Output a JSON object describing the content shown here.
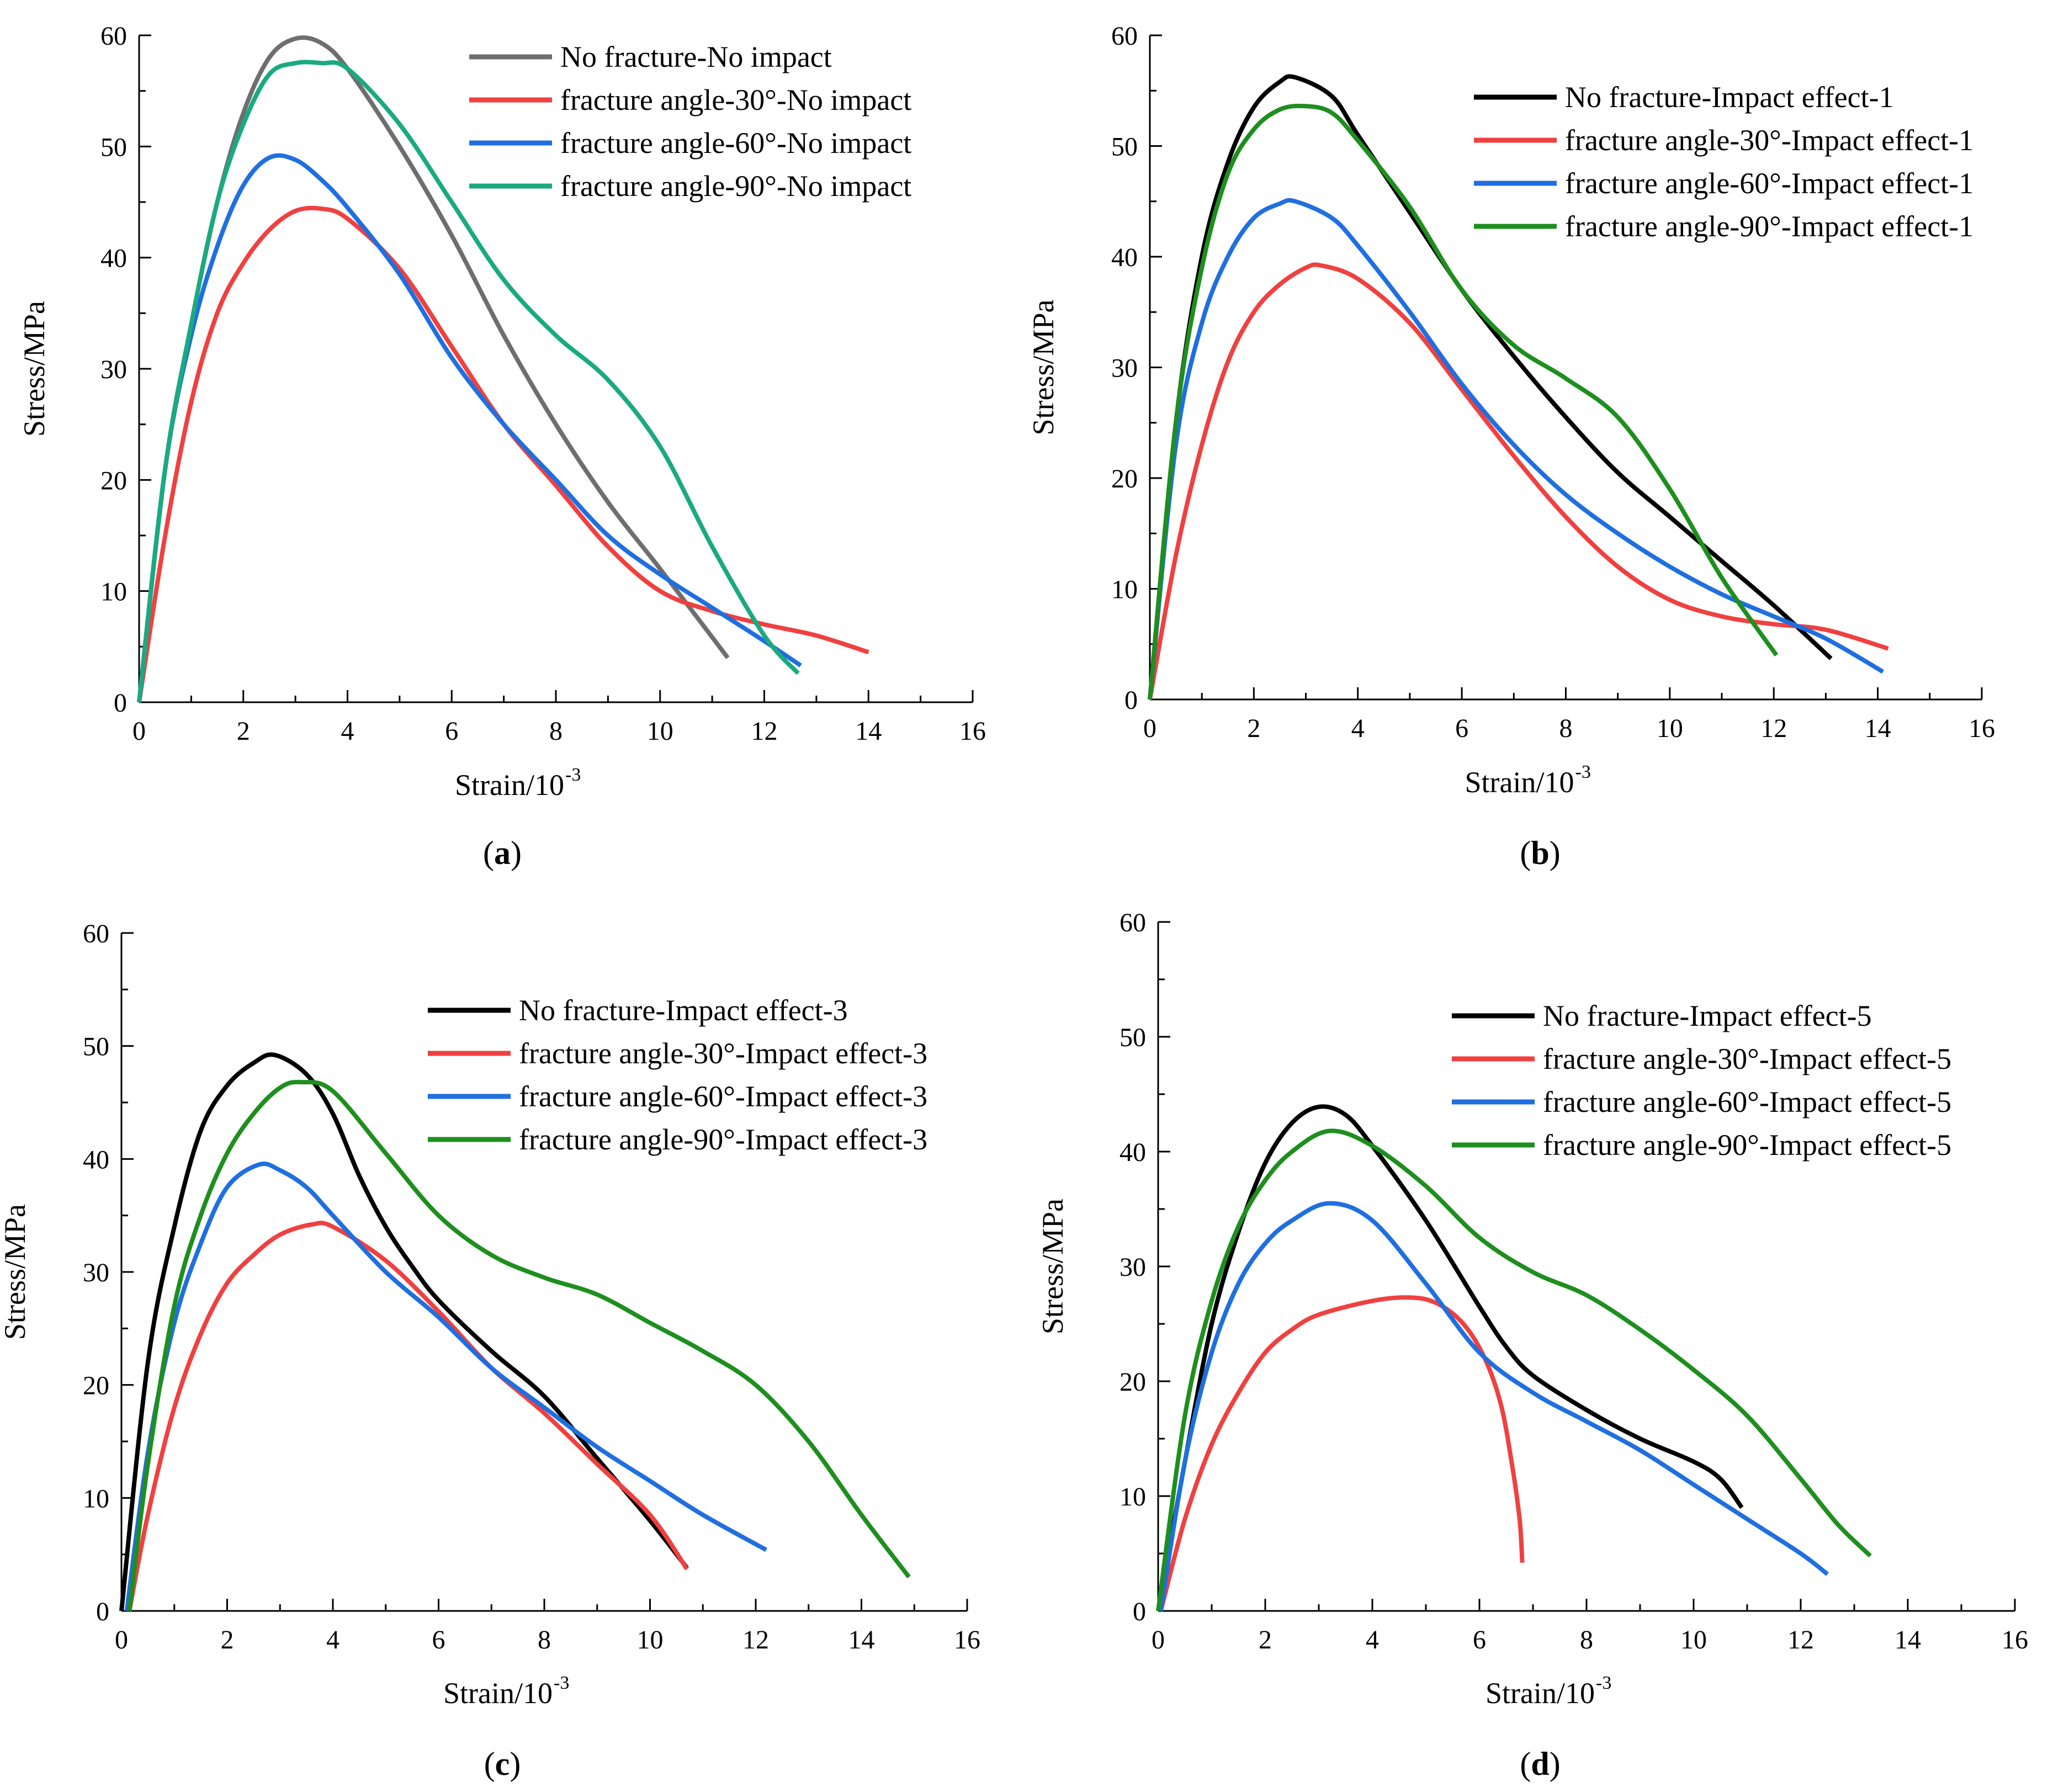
{
  "figure": {
    "panel_labels": [
      {
        "open": "(",
        "letter": "a",
        "close": ")"
      },
      {
        "open": "(",
        "letter": "b",
        "close": ")"
      },
      {
        "open": "(",
        "letter": "c",
        "close": ")"
      },
      {
        "open": "(",
        "letter": "d",
        "close": ")"
      }
    ]
  },
  "chart_data": [
    {
      "type": "line",
      "panel": "a",
      "xlabel": "Strain/10",
      "xlabel_superscript": "-3",
      "ylabel": "Stress/MPa",
      "xlim": [
        0,
        16
      ],
      "ylim": [
        0,
        60
      ],
      "xticks": [
        0,
        2,
        4,
        6,
        8,
        10,
        12,
        14,
        16
      ],
      "yticks": [
        0,
        10,
        20,
        30,
        40,
        50,
        60
      ],
      "legend_position": "top-right",
      "series": [
        {
          "name": "No fracture-No impact",
          "color": "#6e6e6e",
          "x": [
            0,
            0.5,
            1,
            1.5,
            2,
            2.5,
            3,
            3.5,
            4,
            5,
            6,
            7,
            8,
            9,
            10,
            11.3
          ],
          "y": [
            0,
            21,
            34,
            45,
            53,
            58,
            59.7,
            59.3,
            57,
            50,
            42,
            33,
            25,
            18,
            12,
            4
          ]
        },
        {
          "name": "fracture angle-30°-No impact",
          "color": "#f04040",
          "x": [
            0,
            0.5,
            1,
            1.5,
            2,
            2.5,
            3,
            3.5,
            4,
            5,
            6,
            7,
            8,
            9,
            10,
            11,
            12,
            13,
            14
          ],
          "y": [
            0,
            15,
            27,
            35,
            39.5,
            42.5,
            44.2,
            44.4,
            43.5,
            39,
            32,
            25,
            19.5,
            14,
            10,
            8.2,
            7,
            6,
            4.5
          ]
        },
        {
          "name": "fracture angle-60°-No impact",
          "color": "#1f6fe0",
          "x": [
            0,
            0.5,
            1,
            1.5,
            2,
            2.5,
            3,
            3.5,
            4,
            5,
            6,
            7,
            8,
            9,
            10,
            11,
            12,
            12.7
          ],
          "y": [
            0,
            21,
            33,
            41,
            46.5,
            49,
            48.8,
            47,
            44.5,
            38.5,
            31,
            25,
            20,
            15,
            11.5,
            8.5,
            5.5,
            3.3
          ]
        },
        {
          "name": "fracture angle-90°-No impact",
          "color": "#1aaa80",
          "x": [
            0,
            0.5,
            1,
            1.5,
            2,
            2.5,
            3,
            3.5,
            4,
            5,
            6,
            7,
            8,
            9,
            10,
            11,
            12,
            12.65
          ],
          "y": [
            0,
            21,
            34,
            45,
            52,
            56.5,
            57.5,
            57.5,
            57,
            52,
            45,
            38,
            33,
            29,
            23,
            14,
            6,
            2.6
          ]
        }
      ]
    },
    {
      "type": "line",
      "panel": "b",
      "xlabel": "Strain/10",
      "xlabel_superscript": "-3",
      "ylabel": "Stress/MPa",
      "xlim": [
        0,
        16
      ],
      "ylim": [
        0,
        60
      ],
      "xticks": [
        0,
        2,
        4,
        6,
        8,
        10,
        12,
        14,
        16
      ],
      "yticks": [
        0,
        10,
        20,
        30,
        40,
        50,
        60
      ],
      "legend_position": "top-right",
      "series": [
        {
          "name": "No fracture-Impact effect-1",
          "color": "#000000",
          "x": [
            0,
            0.5,
            1,
            1.5,
            2,
            2.5,
            2.8,
            3.5,
            4,
            5,
            6,
            7,
            8,
            9,
            10,
            11,
            12,
            13.1
          ],
          "y": [
            0,
            25,
            40,
            48.5,
            53.5,
            55.8,
            56.2,
            54.5,
            51,
            44,
            37,
            31,
            25.5,
            20.5,
            16.5,
            12.5,
            8.5,
            3.7
          ]
        },
        {
          "name": "fracture angle-30°-Impact effect-1",
          "color": "#f04040",
          "x": [
            0,
            0.5,
            1,
            1.5,
            2,
            2.5,
            3,
            3.3,
            4,
            5,
            6,
            7,
            8,
            9,
            10,
            11,
            12,
            13,
            14.2
          ],
          "y": [
            0,
            13,
            23,
            30.5,
            35,
            37.5,
            39,
            39.2,
            38,
            34,
            28,
            22,
            16.5,
            12,
            9,
            7.5,
            6.8,
            6.3,
            4.6
          ]
        },
        {
          "name": "fracture angle-60°-Impact effect-1",
          "color": "#1f6fe0",
          "x": [
            0,
            0.5,
            1,
            1.5,
            2,
            2.5,
            2.8,
            3.5,
            4,
            5,
            6,
            7,
            8,
            9,
            10,
            11,
            12,
            13,
            14.1
          ],
          "y": [
            0,
            23,
            34,
            40,
            43.5,
            44.8,
            45,
            43.5,
            41,
            35,
            28.5,
            23,
            18.5,
            15,
            12,
            9.5,
            7.5,
            5.5,
            2.5
          ]
        },
        {
          "name": "fracture angle-90°-Impact effect-1",
          "color": "#1e8f1e",
          "x": [
            0,
            0.5,
            1,
            1.5,
            2,
            2.5,
            3,
            3.5,
            4,
            5,
            6,
            7,
            8,
            9,
            10,
            11,
            12.05
          ],
          "y": [
            0,
            25,
            39,
            47.5,
            51.5,
            53.3,
            53.6,
            53,
            50.5,
            44.5,
            37,
            32,
            29,
            25.5,
            19,
            11,
            4
          ]
        }
      ]
    },
    {
      "type": "line",
      "panel": "c",
      "xlabel": "Strain/10",
      "xlabel_superscript": "-3",
      "ylabel": "Stress/MPa",
      "xlim": [
        0,
        16
      ],
      "ylim": [
        0,
        60
      ],
      "xticks": [
        0,
        2,
        4,
        6,
        8,
        10,
        12,
        14,
        16
      ],
      "yticks": [
        0,
        10,
        20,
        30,
        40,
        50,
        60
      ],
      "legend_position": "top-right",
      "series": [
        {
          "name": "No fracture-Impact effect-3",
          "color": "#000000",
          "x": [
            0,
            0.5,
            1,
            1.5,
            2,
            2.5,
            2.9,
            3.5,
            4,
            4.5,
            5,
            5.5,
            6,
            7,
            8,
            9,
            10,
            10.7
          ],
          "y": [
            0,
            22,
            34,
            42.5,
            46.5,
            48.5,
            49.2,
            47.5,
            44,
            38.5,
            34,
            30.5,
            27.5,
            23,
            19,
            13.5,
            8,
            3.8
          ]
        },
        {
          "name": "fracture angle-30°-Impact effect-3",
          "color": "#f04040",
          "x": [
            0.15,
            0.5,
            1,
            1.5,
            2,
            2.5,
            3,
            3.6,
            4,
            5,
            6,
            7,
            8,
            9,
            10,
            10.7
          ],
          "y": [
            0,
            8.5,
            18,
            24.5,
            29,
            31.5,
            33.3,
            34.2,
            34,
            31,
            26.5,
            21.5,
            17.5,
            13,
            8.5,
            3.7
          ]
        },
        {
          "name": "fracture angle-60°-Impact effect-3",
          "color": "#1f6fe0",
          "x": [
            0.1,
            0.5,
            1,
            1.5,
            2,
            2.6,
            3,
            3.5,
            4,
            5,
            6,
            7,
            8,
            9,
            10,
            11,
            12.2
          ],
          "y": [
            0,
            14,
            25.5,
            32.5,
            37.5,
            39.5,
            39,
            37.5,
            35,
            30,
            26,
            21.5,
            18,
            14.5,
            11.5,
            8.5,
            5.4
          ]
        },
        {
          "name": "fracture angle-90°-Impact effect-3",
          "color": "#1e8f1e",
          "x": [
            0.15,
            0.5,
            1,
            1.5,
            2,
            2.5,
            3,
            3.4,
            4,
            5,
            6,
            7,
            8,
            9,
            10,
            11,
            12,
            13,
            14,
            14.9
          ],
          "y": [
            0,
            13,
            27,
            35,
            40.5,
            44,
            46.3,
            46.8,
            46,
            40.5,
            35,
            31.5,
            29.5,
            28,
            25.5,
            23,
            20,
            15,
            8.5,
            3
          ]
        }
      ]
    },
    {
      "type": "line",
      "panel": "d",
      "xlabel": "Strain/10",
      "xlabel_superscript": "-3",
      "ylabel": "Stress/MPa",
      "xlim": [
        0,
        16
      ],
      "ylim": [
        0,
        60
      ],
      "xticks": [
        0,
        2,
        4,
        6,
        8,
        10,
        12,
        14,
        16
      ],
      "yticks": [
        0,
        10,
        20,
        30,
        40,
        50,
        60
      ],
      "legend_position": "top-right",
      "series": [
        {
          "name": "No fracture-Impact effect-5",
          "color": "#000000",
          "x": [
            0,
            0.5,
            1,
            1.5,
            2,
            2.5,
            3,
            3.5,
            4,
            5,
            6,
            6.5,
            7,
            8,
            9,
            10,
            10.5,
            10.9
          ],
          "y": [
            0,
            13,
            25,
            33,
            39,
            42.5,
            43.9,
            43.2,
            40.5,
            34,
            26.5,
            23,
            20.5,
            17.5,
            15,
            13,
            11.5,
            9
          ]
        },
        {
          "name": "fracture angle-30°-Impact effect-5",
          "color": "#f04040",
          "x": [
            0.05,
            0.5,
            1,
            1.5,
            2,
            2.5,
            3,
            4,
            4.7,
            5.2,
            5.7,
            6.1,
            6.4,
            6.6,
            6.75,
            6.8
          ],
          "y": [
            0,
            8,
            14.5,
            19,
            22.5,
            24.5,
            25.8,
            27,
            27.3,
            26.8,
            25,
            22,
            18,
            13,
            8,
            4.2
          ]
        },
        {
          "name": "fracture angle-60°-Impact effect-5",
          "color": "#1f6fe0",
          "x": [
            0.05,
            0.5,
            1,
            1.5,
            2,
            2.5,
            3.2,
            4,
            5,
            6,
            7,
            8,
            9,
            10,
            11,
            12,
            12.5
          ],
          "y": [
            0,
            13,
            22.5,
            28.5,
            32,
            34,
            35.5,
            34,
            28.5,
            22.5,
            19,
            16.5,
            14,
            11,
            8,
            5,
            3.2
          ]
        },
        {
          "name": "fracture angle-90°-Impact effect-5",
          "color": "#1e8f1e",
          "x": [
            0,
            0.5,
            1,
            1.5,
            2,
            2.5,
            3.2,
            4,
            5,
            6,
            7,
            8,
            9,
            10,
            11,
            12,
            12.7,
            13.3
          ],
          "y": [
            0,
            17,
            27,
            33.5,
            37.5,
            40,
            41.8,
            40.5,
            37,
            32.5,
            29.5,
            27.5,
            24.5,
            21,
            17,
            11.5,
            7.5,
            4.8
          ]
        }
      ]
    }
  ]
}
